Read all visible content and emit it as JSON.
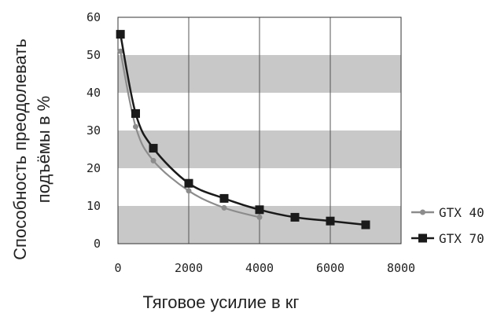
{
  "chart_data": {
    "type": "line",
    "title": "",
    "xlabel": "Тяговое усилие в кг",
    "ylabel_lines": [
      "Способность преодолевать",
      "подъёмы в %"
    ],
    "xlim": [
      0,
      8000
    ],
    "ylim": [
      0,
      60
    ],
    "x_ticks": [
      "0",
      "2000",
      "4000",
      "6000",
      "8000"
    ],
    "y_ticks": [
      "0",
      "10",
      "20",
      "30",
      "40",
      "50",
      "60"
    ],
    "band_color": "#c8c8c8",
    "grid": "vertical lines at x ticks, alternating gray horizontal bands",
    "legend_position": "right",
    "series": [
      {
        "name": "GTX 40",
        "color": "#8c8c8c",
        "marker": "circle",
        "points": [
          [
            70,
            51
          ],
          [
            500,
            31
          ],
          [
            1000,
            22
          ],
          [
            2000,
            14
          ],
          [
            3000,
            9.5
          ],
          [
            4000,
            7
          ]
        ]
      },
      {
        "name": "GTX 70",
        "color": "#1a1a1a",
        "marker": "square",
        "points": [
          [
            70,
            55.5
          ],
          [
            500,
            34.5
          ],
          [
            1000,
            25.3
          ],
          [
            2000,
            16
          ],
          [
            3000,
            12
          ],
          [
            4000,
            9
          ],
          [
            5000,
            7
          ],
          [
            6000,
            6
          ],
          [
            7000,
            5
          ]
        ]
      }
    ]
  }
}
